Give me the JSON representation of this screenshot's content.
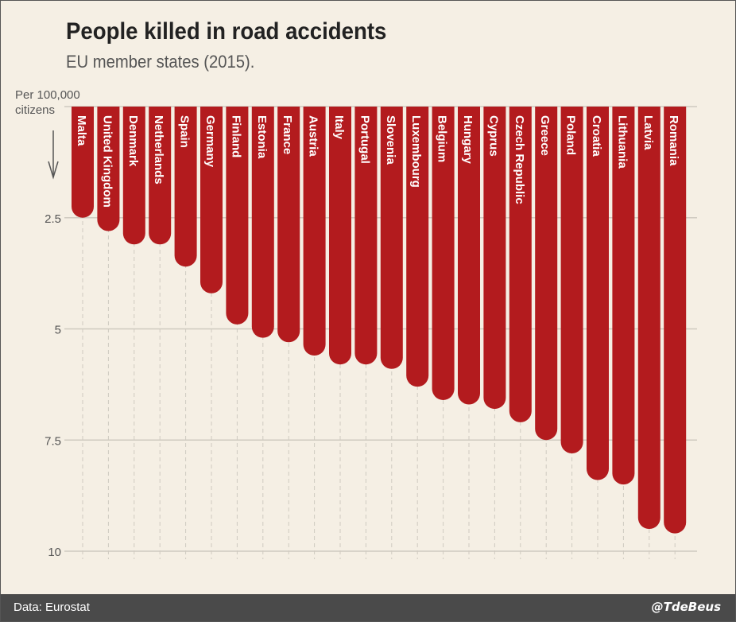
{
  "header": {
    "title": "People killed in road accidents",
    "subtitle": "EU member states (2015)."
  },
  "footer": {
    "source": "Data: Eurostat",
    "credit": "@TdeBeus"
  },
  "colors": {
    "bar": "#b31b1e",
    "background": "#f5efe4",
    "grid": "#cfcac0",
    "footer": "#4a4a4a"
  },
  "chart_data": {
    "type": "bar",
    "title": "People killed in road accidents",
    "subtitle": "EU member states (2015).",
    "ylabel_lines": [
      "Per 100,000",
      "citizens"
    ],
    "orientation": "vertical-down",
    "y_ticks": [
      2.5,
      5,
      7.5,
      10
    ],
    "ylim": [
      0,
      10
    ],
    "grid": true,
    "categories": [
      "Malta",
      "United Kingdom",
      "Denmark",
      "Netherlands",
      "Spain",
      "Germany",
      "Finland",
      "Estonia",
      "France",
      "Austria",
      "Italy",
      "Portugal",
      "Slovenia",
      "Luxembourg",
      "Belgium",
      "Hungary",
      "Cyprus",
      "Czech Republic",
      "Greece",
      "Poland",
      "Croatia",
      "Lithuania",
      "Latvia",
      "Romania"
    ],
    "values": [
      2.5,
      2.8,
      3.1,
      3.1,
      3.6,
      4.2,
      4.9,
      5.2,
      5.3,
      5.6,
      5.8,
      5.8,
      5.9,
      6.3,
      6.6,
      6.7,
      6.8,
      7.1,
      7.5,
      7.8,
      8.4,
      8.5,
      9.5,
      9.6
    ]
  }
}
